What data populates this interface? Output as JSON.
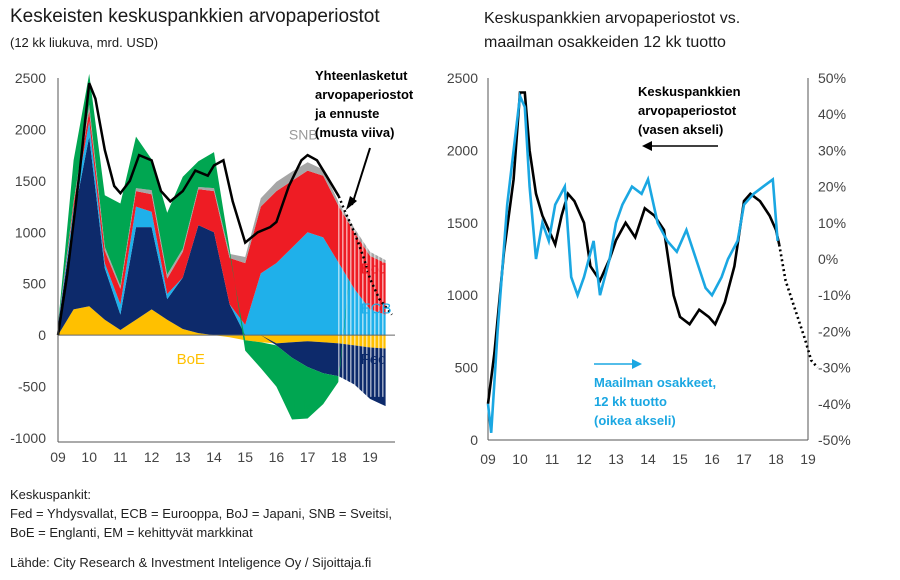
{
  "left": {
    "title": "Keskeisten keskuspankkien arvopaperiostot",
    "subtitle": "(12 kk liukuva, mrd. USD)"
  },
  "right": {
    "title_line1": "Keskuspankkien arvopaperiostot vs.",
    "title_line2": "maailman osakkeiden 12 kk tuotto"
  },
  "legend": {
    "heading": "Keskuspankit:",
    "line1": "Fed = Yhdysvallat, ECB = Eurooppa, BoJ = Japani, SNB = Sveitsi,",
    "line2": "BoE = Englanti, EM = kehittyvät markkinat"
  },
  "source": "Lähde: City Research & Investment Inteligence Oy / Sijoittaja.fi",
  "colors": {
    "fed": "#0d2a6b",
    "ecb": "#1fb0ea",
    "boj": "#ee1c24",
    "snb": "#a6a6a6",
    "boe": "#ffc000",
    "em": "#00a651",
    "total": "#000000",
    "world": "#1aa7e2",
    "axis": "#555555"
  },
  "chart_data": [
    {
      "type": "area",
      "stacked": true,
      "title": "Keskeisten keskuspankkien arvopaperiostot",
      "subtitle": "(12 kk liukuva, mrd. USD)",
      "x_ticks": [
        "09",
        "10",
        "11",
        "12",
        "13",
        "14",
        "15",
        "16",
        "17",
        "18",
        "19"
      ],
      "y_ticks": [
        2500,
        2000,
        1500,
        1000,
        500,
        0,
        -500,
        -1000
      ],
      "ylim": [
        -1000,
        2500
      ],
      "grid": false,
      "x": [
        2009.0,
        2009.5,
        2010.0,
        2010.5,
        2011.0,
        2011.5,
        2012.0,
        2012.5,
        2013.0,
        2013.5,
        2014.0,
        2014.5,
        2015.0,
        2015.5,
        2016.0,
        2016.5,
        2017.0,
        2017.5,
        2018.0,
        2018.5,
        2019.0,
        2019.5
      ],
      "forecast_from": 2018.0,
      "series": [
        {
          "name": "Fed",
          "values": [
            100,
            900,
            1650,
            500,
            150,
            900,
            800,
            200,
            500,
            1050,
            1000,
            300,
            0,
            0,
            -20,
            -150,
            -250,
            -300,
            -320,
            -380,
            -500,
            -560
          ]
        },
        {
          "name": "ECB",
          "values": [
            0,
            80,
            150,
            50,
            100,
            200,
            150,
            50,
            0,
            0,
            0,
            0,
            100,
            600,
            700,
            850,
            1000,
            950,
            700,
            450,
            250,
            200
          ]
        },
        {
          "name": "BoJ",
          "values": [
            0,
            50,
            100,
            120,
            150,
            150,
            170,
            150,
            250,
            350,
            400,
            450,
            600,
            650,
            700,
            650,
            600,
            600,
            550,
            550,
            520,
            500
          ]
        },
        {
          "name": "SNB",
          "values": [
            0,
            20,
            60,
            40,
            30,
            30,
            40,
            40,
            30,
            20,
            30,
            40,
            60,
            80,
            90,
            90,
            80,
            60,
            40,
            40,
            40,
            30
          ]
        },
        {
          "name": "BoE",
          "values": [
            0,
            250,
            280,
            150,
            50,
            150,
            250,
            150,
            60,
            20,
            0,
            -20,
            -50,
            -70,
            -80,
            -70,
            -60,
            -70,
            -80,
            -100,
            -120,
            -130
          ]
        },
        {
          "name": "EM",
          "values": [
            0,
            400,
            300,
            500,
            800,
            500,
            300,
            600,
            700,
            250,
            350,
            50,
            -100,
            -250,
            -400,
            -600,
            -500,
            -300,
            -50,
            0,
            0,
            0
          ]
        }
      ],
      "labels": {
        "snb": "SNB",
        "boj": "BoJ",
        "ecb": "ECB",
        "fed": "Fed",
        "boe": "BoE",
        "em": "EM",
        "total_line1": "Yhteenlasketut",
        "total_line2": "arvopaperiostot",
        "total_line3": "ja ennuste",
        "total_line4": "(musta viiva)"
      },
      "total_line": [
        [
          2009.0,
          0
        ],
        [
          2009.3,
          600
        ],
        [
          2009.7,
          1600
        ],
        [
          2010.0,
          2450
        ],
        [
          2010.2,
          2300
        ],
        [
          2010.5,
          1800
        ],
        [
          2010.8,
          1450
        ],
        [
          2011.0,
          1380
        ],
        [
          2011.3,
          1500
        ],
        [
          2011.6,
          1750
        ],
        [
          2012.0,
          1700
        ],
        [
          2012.3,
          1400
        ],
        [
          2012.6,
          1300
        ],
        [
          2013.0,
          1400
        ],
        [
          2013.4,
          1600
        ],
        [
          2013.8,
          1550
        ],
        [
          2014.0,
          1650
        ],
        [
          2014.3,
          1700
        ],
        [
          2014.6,
          1300
        ],
        [
          2015.0,
          900
        ],
        [
          2015.4,
          1000
        ],
        [
          2015.8,
          1050
        ],
        [
          2016.0,
          1100
        ],
        [
          2016.4,
          1450
        ],
        [
          2016.8,
          1700
        ],
        [
          2017.0,
          1750
        ],
        [
          2017.3,
          1700
        ],
        [
          2017.6,
          1550
        ],
        [
          2018.0,
          1350
        ],
        [
          2018.2,
          1200
        ],
        [
          2018.5,
          1000
        ],
        [
          2018.8,
          750
        ],
        [
          2019.0,
          550
        ],
        [
          2019.3,
          350
        ],
        [
          2019.7,
          200
        ]
      ]
    },
    {
      "type": "line",
      "title": "Keskuspankkien arvopaperiostot vs. maailman osakkeiden 12 kk tuotto",
      "x_ticks": [
        "09",
        "10",
        "11",
        "12",
        "13",
        "14",
        "15",
        "16",
        "17",
        "18",
        "19"
      ],
      "y_left_ticks": [
        2500,
        2000,
        1500,
        1000,
        500,
        0
      ],
      "ylim_left": [
        0,
        2500
      ],
      "y_right_ticks": [
        "50%",
        "40%",
        "30%",
        "20%",
        "10%",
        "0%",
        "-10%",
        "-20%",
        "-30%",
        "-40%",
        "-50%"
      ],
      "ylim_right": [
        -50,
        50
      ],
      "grid": false,
      "labels": {
        "cb_line1": "Keskuspankkien",
        "cb_line2": "arvopaperiostot",
        "cb_line3": "(vasen akseli)",
        "world_line1": "Maailman osakkeet,",
        "world_line2": "12 kk tuotto",
        "world_line3": "(oikea akseli)"
      },
      "series": [
        {
          "name": "Keskuspankkien arvopaperiostot",
          "axis": "left",
          "color": "#000000",
          "points": [
            [
              2009.0,
              250
            ],
            [
              2009.2,
              600
            ],
            [
              2009.5,
              1300
            ],
            [
              2009.8,
              1800
            ],
            [
              2010.0,
              2400
            ],
            [
              2010.15,
              2400
            ],
            [
              2010.3,
              2000
            ],
            [
              2010.5,
              1700
            ],
            [
              2010.7,
              1550
            ],
            [
              2010.9,
              1450
            ],
            [
              2011.1,
              1350
            ],
            [
              2011.3,
              1550
            ],
            [
              2011.5,
              1700
            ],
            [
              2011.7,
              1650
            ],
            [
              2012.0,
              1500
            ],
            [
              2012.2,
              1200
            ],
            [
              2012.5,
              1100
            ],
            [
              2012.8,
              1250
            ],
            [
              2013.0,
              1380
            ],
            [
              2013.3,
              1500
            ],
            [
              2013.6,
              1400
            ],
            [
              2013.9,
              1600
            ],
            [
              2014.2,
              1550
            ],
            [
              2014.5,
              1450
            ],
            [
              2014.8,
              1000
            ],
            [
              2015.0,
              850
            ],
            [
              2015.3,
              800
            ],
            [
              2015.6,
              900
            ],
            [
              2015.9,
              850
            ],
            [
              2016.1,
              800
            ],
            [
              2016.4,
              950
            ],
            [
              2016.7,
              1200
            ],
            [
              2017.0,
              1650
            ],
            [
              2017.2,
              1700
            ],
            [
              2017.5,
              1650
            ],
            [
              2017.8,
              1550
            ],
            [
              2018.0,
              1450
            ],
            [
              2018.1,
              1350
            ]
          ],
          "forecast": [
            [
              2018.1,
              1350
            ],
            [
              2018.3,
              1100
            ],
            [
              2018.6,
              900
            ],
            [
              2018.9,
              700
            ],
            [
              2019.1,
              550
            ],
            [
              2019.3,
              500
            ]
          ]
        },
        {
          "name": "Maailman osakkeet, 12 kk tuotto",
          "axis": "right",
          "color": "#1aa7e2",
          "points": [
            [
              2009.0,
              -40
            ],
            [
              2009.1,
              -48
            ],
            [
              2009.3,
              -20
            ],
            [
              2009.6,
              15
            ],
            [
              2009.8,
              30
            ],
            [
              2010.0,
              45
            ],
            [
              2010.15,
              42
            ],
            [
              2010.3,
              20
            ],
            [
              2010.5,
              0
            ],
            [
              2010.7,
              10
            ],
            [
              2010.9,
              5
            ],
            [
              2011.1,
              15
            ],
            [
              2011.4,
              20
            ],
            [
              2011.6,
              -5
            ],
            [
              2011.8,
              -10
            ],
            [
              2012.0,
              -5
            ],
            [
              2012.3,
              5
            ],
            [
              2012.5,
              -10
            ],
            [
              2012.8,
              0
            ],
            [
              2013.0,
              10
            ],
            [
              2013.2,
              15
            ],
            [
              2013.5,
              20
            ],
            [
              2013.8,
              18
            ],
            [
              2014.0,
              22
            ],
            [
              2014.3,
              10
            ],
            [
              2014.6,
              5
            ],
            [
              2014.9,
              2
            ],
            [
              2015.2,
              8
            ],
            [
              2015.5,
              0
            ],
            [
              2015.8,
              -8
            ],
            [
              2016.0,
              -10
            ],
            [
              2016.3,
              -5
            ],
            [
              2016.5,
              0
            ],
            [
              2016.8,
              5
            ],
            [
              2017.0,
              15
            ],
            [
              2017.3,
              18
            ],
            [
              2017.6,
              20
            ],
            [
              2017.9,
              22
            ],
            [
              2018.05,
              5
            ]
          ]
        }
      ]
    }
  ]
}
